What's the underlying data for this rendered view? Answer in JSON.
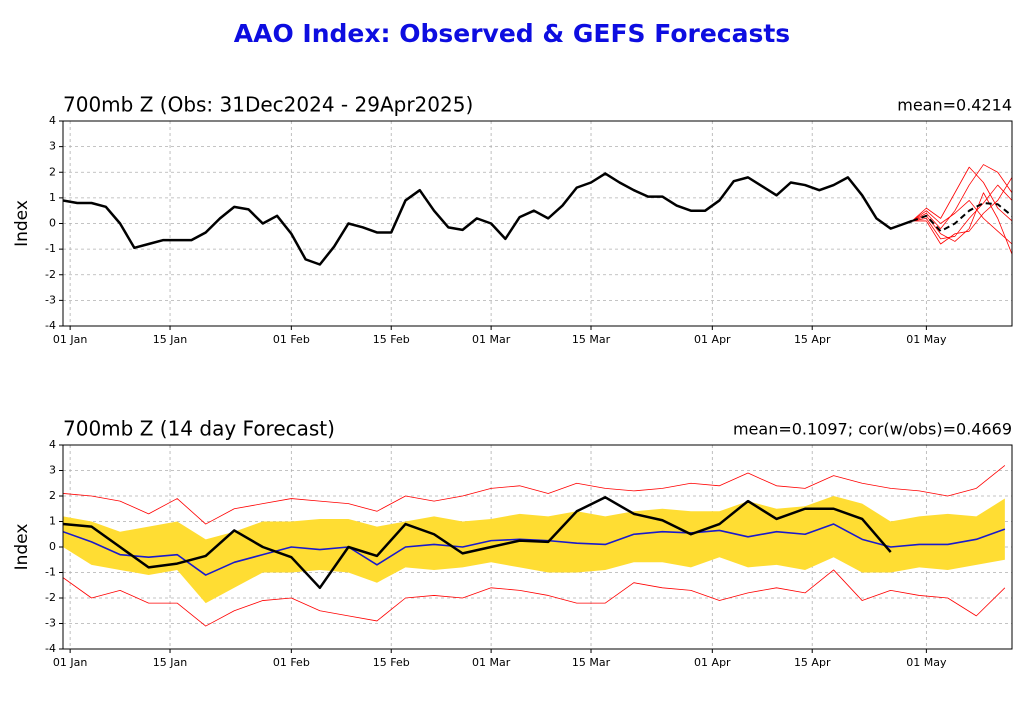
{
  "title": "AAO Index: Observed & GEFS Forecasts",
  "chart_data": [
    {
      "type": "line",
      "title": "700mb Z (Obs: 31Dec2024 - 29Apr2025)",
      "annotation": "mean=0.4214",
      "ylabel": "Index",
      "xlim": [
        "2024-12-31",
        "2025-05-13"
      ],
      "ylim": [
        -4,
        4
      ],
      "yticks": [
        -4,
        -3,
        -2,
        -1,
        0,
        1,
        2,
        3,
        4
      ],
      "xticks": [
        {
          "value": "2025-01-01",
          "label": "01 Jan"
        },
        {
          "value": "2025-01-15",
          "label": "15 Jan"
        },
        {
          "value": "2025-02-01",
          "label": "01 Feb"
        },
        {
          "value": "2025-02-15",
          "label": "15 Feb"
        },
        {
          "value": "2025-03-01",
          "label": "01 Mar"
        },
        {
          "value": "2025-03-15",
          "label": "15 Mar"
        },
        {
          "value": "2025-04-01",
          "label": "01 Apr"
        },
        {
          "value": "2025-04-15",
          "label": "15 Apr"
        },
        {
          "value": "2025-05-01",
          "label": "01 May"
        }
      ],
      "grid": true,
      "series": [
        {
          "color": "#000000",
          "width": 2.5,
          "dash": false,
          "x": [
            "2024-12-31",
            "2025-01-02",
            "2025-01-04",
            "2025-01-06",
            "2025-01-08",
            "2025-01-10",
            "2025-01-12",
            "2025-01-14",
            "2025-01-16",
            "2025-01-18",
            "2025-01-20",
            "2025-01-22",
            "2025-01-24",
            "2025-01-26",
            "2025-01-28",
            "2025-01-30",
            "2025-02-01",
            "2025-02-03",
            "2025-02-05",
            "2025-02-07",
            "2025-02-09",
            "2025-02-11",
            "2025-02-13",
            "2025-02-15",
            "2025-02-17",
            "2025-02-19",
            "2025-02-21",
            "2025-02-23",
            "2025-02-25",
            "2025-02-27",
            "2025-03-01",
            "2025-03-03",
            "2025-03-05",
            "2025-03-07",
            "2025-03-09",
            "2025-03-11",
            "2025-03-13",
            "2025-03-15",
            "2025-03-17",
            "2025-03-19",
            "2025-03-21",
            "2025-03-23",
            "2025-03-25",
            "2025-03-27",
            "2025-03-29",
            "2025-03-31",
            "2025-04-02",
            "2025-04-04",
            "2025-04-06",
            "2025-04-08",
            "2025-04-10",
            "2025-04-12",
            "2025-04-14",
            "2025-04-16",
            "2025-04-18",
            "2025-04-20",
            "2025-04-22",
            "2025-04-24",
            "2025-04-26",
            "2025-04-28",
            "2025-04-29"
          ],
          "values": [
            0.9,
            0.8,
            0.8,
            0.65,
            0.0,
            -0.95,
            -0.8,
            -0.65,
            -0.65,
            -0.65,
            -0.35,
            0.2,
            0.65,
            0.55,
            0.0,
            0.3,
            -0.4,
            -1.4,
            -1.6,
            -0.9,
            0.0,
            -0.15,
            -0.35,
            -0.35,
            0.9,
            1.3,
            0.5,
            -0.15,
            -0.25,
            0.2,
            0.0,
            -0.6,
            0.25,
            0.5,
            0.2,
            0.7,
            1.4,
            1.6,
            1.95,
            1.6,
            1.3,
            1.05,
            1.05,
            0.7,
            0.5,
            0.5,
            0.9,
            1.65,
            1.8,
            1.45,
            1.1,
            1.6,
            1.5,
            1.3,
            1.5,
            1.8,
            1.1,
            0.2,
            -0.2,
            0.0,
            0.1
          ]
        },
        {
          "color": "#ff0000",
          "width": 0.8,
          "dash": false,
          "x": [
            "2025-04-29",
            "2025-05-01",
            "2025-05-03",
            "2025-05-05",
            "2025-05-07",
            "2025-05-09",
            "2025-05-11",
            "2025-05-13"
          ],
          "values": [
            0.1,
            0.4,
            -0.2,
            0.5,
            1.5,
            2.3,
            2.0,
            1.2
          ]
        },
        {
          "color": "#ff0000",
          "width": 0.8,
          "dash": false,
          "x": [
            "2025-04-29",
            "2025-05-01",
            "2025-05-03",
            "2025-05-05",
            "2025-05-07",
            "2025-05-09",
            "2025-05-11",
            "2025-05-13"
          ],
          "values": [
            0.1,
            0.2,
            -0.6,
            -0.5,
            0.2,
            0.8,
            1.5,
            0.9
          ]
        },
        {
          "color": "#ff0000",
          "width": 0.8,
          "dash": false,
          "x": [
            "2025-04-29",
            "2025-05-01",
            "2025-05-03",
            "2025-05-05",
            "2025-05-07",
            "2025-05-09",
            "2025-05-11",
            "2025-05-13"
          ],
          "values": [
            0.1,
            0.5,
            0.0,
            0.4,
            0.9,
            0.2,
            -0.3,
            -0.8
          ]
        },
        {
          "color": "#ff0000",
          "width": 0.8,
          "dash": false,
          "x": [
            "2025-04-29",
            "2025-05-01",
            "2025-05-03",
            "2025-05-05",
            "2025-05-07",
            "2025-05-09",
            "2025-05-11",
            "2025-05-13"
          ],
          "values": [
            0.1,
            0.1,
            -0.8,
            -0.4,
            -0.3,
            0.4,
            0.9,
            1.8
          ]
        },
        {
          "color": "#ff0000",
          "width": 0.8,
          "dash": false,
          "x": [
            "2025-04-29",
            "2025-05-01",
            "2025-05-03",
            "2025-05-05",
            "2025-05-07",
            "2025-05-09",
            "2025-05-11",
            "2025-05-13"
          ],
          "values": [
            0.1,
            0.6,
            0.2,
            1.2,
            2.2,
            1.6,
            0.6,
            0.1
          ]
        },
        {
          "color": "#ff0000",
          "width": 0.8,
          "dash": false,
          "x": [
            "2025-04-29",
            "2025-05-01",
            "2025-05-03",
            "2025-05-05",
            "2025-05-07",
            "2025-05-09",
            "2025-05-11",
            "2025-05-13"
          ],
          "values": [
            0.1,
            0.3,
            -0.4,
            -0.7,
            -0.2,
            1.2,
            0.2,
            -1.2
          ]
        },
        {
          "color": "#000000",
          "width": 2,
          "dash": true,
          "x": [
            "2025-04-29",
            "2025-05-01",
            "2025-05-03",
            "2025-05-05",
            "2025-05-07",
            "2025-05-09",
            "2025-05-11",
            "2025-05-13"
          ],
          "values": [
            0.1,
            0.3,
            -0.3,
            0.0,
            0.5,
            0.8,
            0.75,
            0.3
          ]
        }
      ]
    },
    {
      "type": "line",
      "title": "700mb Z (14 day Forecast)",
      "annotation": "mean=0.1097; cor(w/obs)=0.4669",
      "ylabel": "Index",
      "xlim": [
        "2024-12-31",
        "2025-05-13"
      ],
      "ylim": [
        -4,
        4
      ],
      "yticks": [
        -4,
        -3,
        -2,
        -1,
        0,
        1,
        2,
        3,
        4
      ],
      "xticks": [
        {
          "value": "2025-01-01",
          "label": "01 Jan"
        },
        {
          "value": "2025-01-15",
          "label": "15 Jan"
        },
        {
          "value": "2025-02-01",
          "label": "01 Feb"
        },
        {
          "value": "2025-02-15",
          "label": "15 Feb"
        },
        {
          "value": "2025-03-01",
          "label": "01 Mar"
        },
        {
          "value": "2025-03-15",
          "label": "15 Mar"
        },
        {
          "value": "2025-04-01",
          "label": "01 Apr"
        },
        {
          "value": "2025-04-15",
          "label": "15 Apr"
        },
        {
          "value": "2025-05-01",
          "label": "01 May"
        }
      ],
      "grid": true,
      "x": [
        "2024-12-31",
        "2025-01-04",
        "2025-01-08",
        "2025-01-12",
        "2025-01-16",
        "2025-01-20",
        "2025-01-24",
        "2025-01-28",
        "2025-02-01",
        "2025-02-05",
        "2025-02-09",
        "2025-02-13",
        "2025-02-17",
        "2025-02-21",
        "2025-02-25",
        "2025-03-01",
        "2025-03-05",
        "2025-03-09",
        "2025-03-13",
        "2025-03-17",
        "2025-03-21",
        "2025-03-25",
        "2025-03-29",
        "2025-04-02",
        "2025-04-06",
        "2025-04-10",
        "2025-04-14",
        "2025-04-18",
        "2025-04-22",
        "2025-04-26",
        "2025-04-30",
        "2025-05-04",
        "2025-05-08",
        "2025-05-12"
      ],
      "band": {
        "color": "#ffdd33",
        "lower": [
          0.0,
          -0.7,
          -0.9,
          -1.1,
          -0.9,
          -2.2,
          -1.6,
          -1.0,
          -1.0,
          -0.9,
          -1.0,
          -1.4,
          -0.8,
          -0.9,
          -0.8,
          -0.6,
          -0.8,
          -1.0,
          -1.0,
          -0.9,
          -0.6,
          -0.6,
          -0.8,
          -0.4,
          -0.8,
          -0.7,
          -0.9,
          -0.4,
          -1.0,
          -1.0,
          -0.8,
          -0.9,
          -0.7,
          -0.5
        ],
        "upper": [
          1.2,
          1.0,
          0.6,
          0.8,
          1.0,
          0.3,
          0.6,
          1.0,
          1.0,
          1.1,
          1.1,
          0.8,
          1.0,
          1.2,
          1.0,
          1.1,
          1.3,
          1.2,
          1.4,
          1.2,
          1.4,
          1.5,
          1.4,
          1.4,
          1.8,
          1.5,
          1.6,
          2.0,
          1.7,
          1.0,
          1.2,
          1.3,
          1.2,
          1.9
        ]
      },
      "series": [
        {
          "color": "#ff0000",
          "width": 0.8,
          "values": [
            2.1,
            2.0,
            1.8,
            1.3,
            1.9,
            0.9,
            1.5,
            1.7,
            1.9,
            1.8,
            1.7,
            1.4,
            2.0,
            1.8,
            2.0,
            2.3,
            2.4,
            2.1,
            2.5,
            2.3,
            2.2,
            2.3,
            2.5,
            2.4,
            2.9,
            2.4,
            2.3,
            2.8,
            2.5,
            2.3,
            2.2,
            2.0,
            2.3,
            3.2
          ]
        },
        {
          "color": "#ff0000",
          "width": 0.8,
          "values": [
            -1.2,
            -2.0,
            -1.7,
            -2.2,
            -2.2,
            -3.1,
            -2.5,
            -2.1,
            -2.0,
            -2.5,
            -2.7,
            -2.9,
            -2.0,
            -1.9,
            -2.0,
            -1.6,
            -1.7,
            -1.9,
            -2.2,
            -2.2,
            -1.4,
            -1.6,
            -1.7,
            -2.1,
            -1.8,
            -1.6,
            -1.8,
            -0.9,
            -2.1,
            -1.7,
            -1.9,
            -2.0,
            -2.7,
            -1.6
          ]
        },
        {
          "color": "#1a1acc",
          "width": 1.6,
          "values": [
            0.6,
            0.2,
            -0.3,
            -0.4,
            -0.3,
            -1.1,
            -0.6,
            -0.3,
            0.0,
            -0.1,
            0.0,
            -0.7,
            0.0,
            0.1,
            0.0,
            0.25,
            0.3,
            0.25,
            0.15,
            0.1,
            0.5,
            0.6,
            0.55,
            0.65,
            0.4,
            0.6,
            0.5,
            0.9,
            0.3,
            0.0,
            0.1,
            0.1,
            0.3,
            0.7
          ]
        },
        {
          "color": "#000000",
          "width": 2.5,
          "values": [
            0.9,
            0.8,
            0.0,
            -0.8,
            -0.65,
            -0.35,
            0.65,
            0.0,
            -0.4,
            -1.6,
            0.0,
            -0.35,
            0.9,
            0.5,
            -0.25,
            0.0,
            0.25,
            0.2,
            1.4,
            1.95,
            1.3,
            1.05,
            0.5,
            0.9,
            1.8,
            1.1,
            1.5,
            1.5,
            1.1,
            -0.2,
            null,
            null,
            null,
            null
          ]
        }
      ]
    }
  ]
}
